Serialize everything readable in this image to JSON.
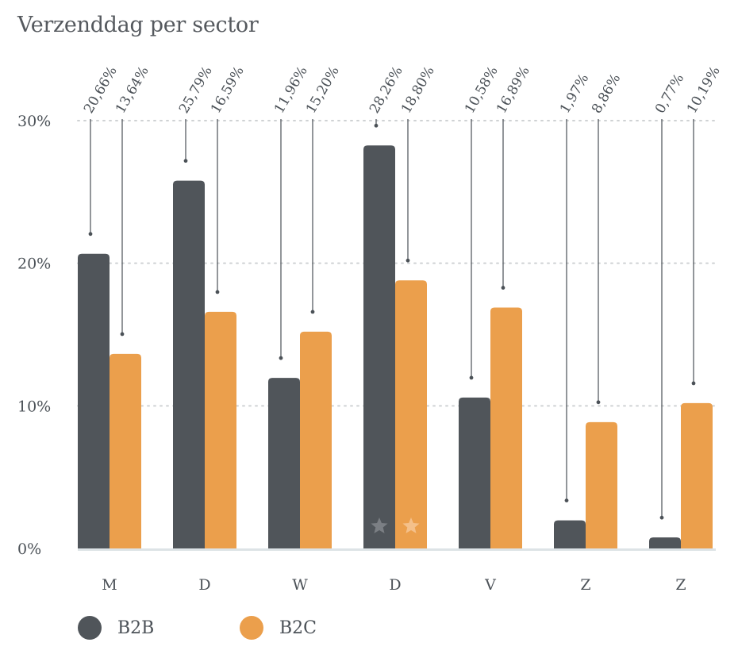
{
  "title": "Verzenddag per sector",
  "colors": {
    "b2b": "#50555a",
    "b2c": "#eb9f4c",
    "grid": "#cfd2d4",
    "axis": "#dde3e6"
  },
  "chart_data": {
    "type": "bar",
    "title": "Verzenddag per sector",
    "categories": [
      "M",
      "D",
      "W",
      "D",
      "V",
      "Z",
      "Z"
    ],
    "series": [
      {
        "name": "B2B",
        "values": [
          20.66,
          25.79,
          11.96,
          28.26,
          10.58,
          1.97,
          0.77
        ],
        "value_labels": [
          "20,66%",
          "25,79%",
          "11,96%",
          "28,26%",
          "10,58%",
          "1,97%",
          "0,77%"
        ]
      },
      {
        "name": "B2C",
        "values": [
          13.64,
          16.59,
          15.2,
          18.8,
          16.89,
          8.86,
          10.19
        ],
        "value_labels": [
          "13,64%",
          "16,59%",
          "15,20%",
          "18,80%",
          "16,89%",
          "8,86%",
          "10,19%"
        ]
      }
    ],
    "ylim": [
      0,
      30
    ],
    "yticks": [
      "0%",
      "10%",
      "20%",
      "30%"
    ],
    "grid": true,
    "legend": "bottom-left",
    "highlight": {
      "category_index": 3,
      "marker": "star-icon"
    }
  },
  "legend_items": [
    {
      "label": "B2B"
    },
    {
      "label": "B2C"
    }
  ]
}
